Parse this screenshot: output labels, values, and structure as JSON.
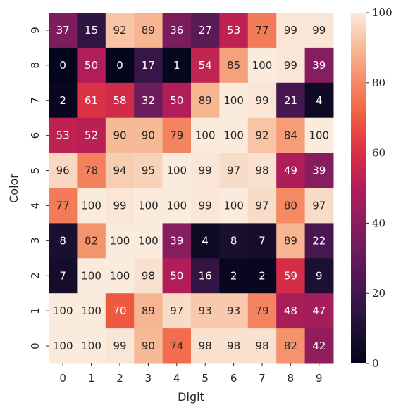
{
  "chart_data": {
    "type": "heatmap",
    "xlabel": "Digit",
    "ylabel": "Color",
    "x_categories": [
      "0",
      "1",
      "2",
      "3",
      "4",
      "5",
      "6",
      "7",
      "8",
      "9"
    ],
    "y_categories_top_to_bottom": [
      "9",
      "8",
      "7",
      "6",
      "5",
      "4",
      "3",
      "2",
      "1",
      "0"
    ],
    "values_top_to_bottom": [
      [
        37,
        15,
        92,
        89,
        36,
        27,
        53,
        77,
        99,
        99
      ],
      [
        0,
        50,
        0,
        17,
        1,
        54,
        85,
        100,
        99,
        39
      ],
      [
        2,
        61,
        58,
        32,
        50,
        89,
        100,
        99,
        21,
        4
      ],
      [
        53,
        52,
        90,
        90,
        79,
        100,
        100,
        92,
        84,
        100
      ],
      [
        96,
        78,
        94,
        95,
        100,
        99,
        97,
        98,
        49,
        39
      ],
      [
        77,
        100,
        99,
        100,
        100,
        99,
        100,
        97,
        80,
        97
      ],
      [
        8,
        82,
        100,
        100,
        39,
        4,
        8,
        7,
        89,
        22
      ],
      [
        7,
        100,
        100,
        98,
        50,
        16,
        2,
        2,
        59,
        9
      ],
      [
        100,
        100,
        70,
        89,
        97,
        93,
        93,
        79,
        48,
        47
      ],
      [
        100,
        100,
        99,
        90,
        74,
        98,
        98,
        98,
        82,
        42
      ]
    ],
    "colorbar": {
      "min": 0,
      "max": 100,
      "ticks": [
        "0",
        "20",
        "40",
        "60",
        "80",
        "100"
      ]
    },
    "colormap": "rocket",
    "grid": false
  }
}
